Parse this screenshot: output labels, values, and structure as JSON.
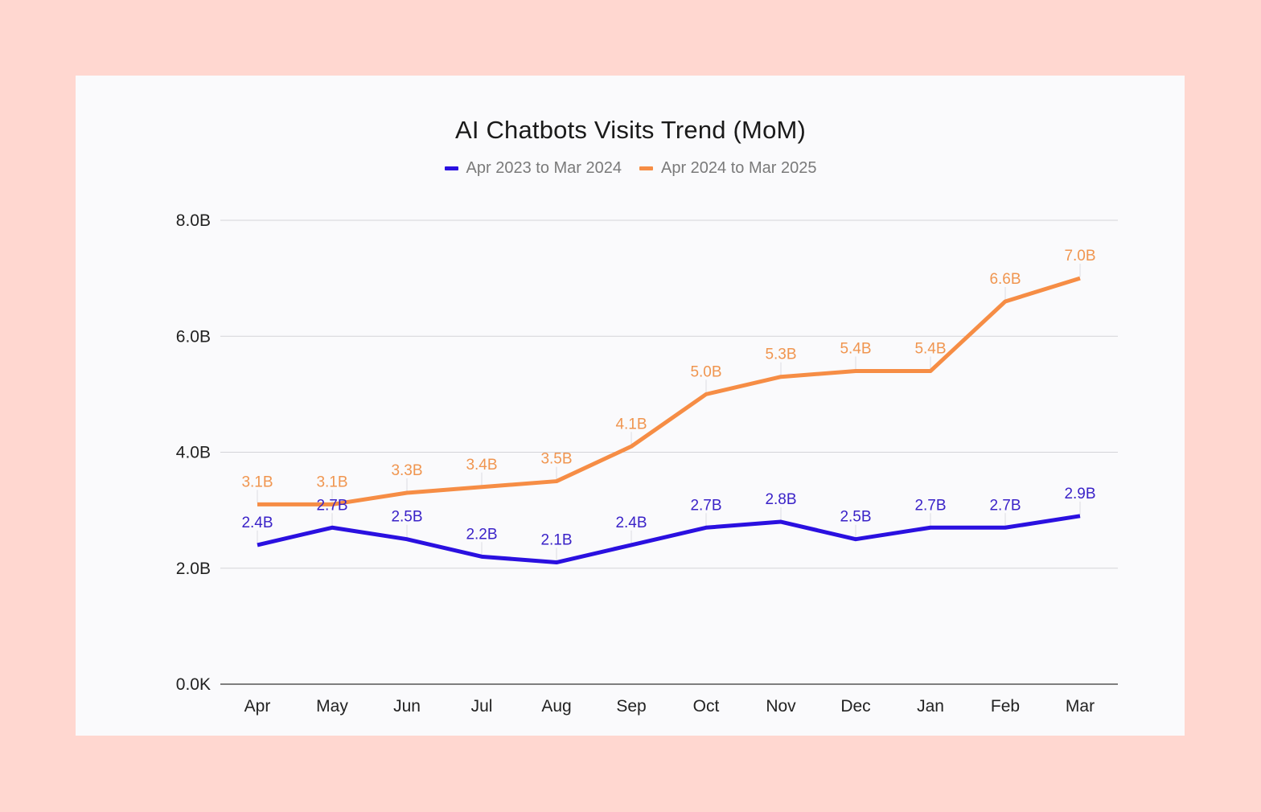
{
  "chart_data": {
    "type": "line",
    "title": "AI Chatbots Visits Trend (MoM)",
    "xlabel": "",
    "ylabel": "",
    "categories": [
      "Apr",
      "May",
      "Jun",
      "Jul",
      "Aug",
      "Sep",
      "Oct",
      "Nov",
      "Dec",
      "Jan",
      "Feb",
      "Mar"
    ],
    "ylim": [
      0,
      8
    ],
    "y_unit": "B",
    "y_ticks": [
      {
        "value": 0,
        "label": "0.0K"
      },
      {
        "value": 2,
        "label": "2.0B"
      },
      {
        "value": 4,
        "label": "4.0B"
      },
      {
        "value": 6,
        "label": "6.0B"
      },
      {
        "value": 8,
        "label": "8.0B"
      }
    ],
    "grid": true,
    "legend_position": "top-center",
    "series": [
      {
        "name": "Apr 2023 to Mar 2024",
        "color": "#2a10e0",
        "label_color": "#3a22c8",
        "values": [
          2.4,
          2.7,
          2.5,
          2.2,
          2.1,
          2.4,
          2.7,
          2.8,
          2.5,
          2.7,
          2.7,
          2.9
        ],
        "labels": [
          "2.4B",
          "2.7B",
          "2.5B",
          "2.2B",
          "2.1B",
          "2.4B",
          "2.7B",
          "2.8B",
          "2.5B",
          "2.7B",
          "2.7B",
          "2.9B"
        ]
      },
      {
        "name": "Apr 2024 to Mar 2025",
        "color": "#f68d45",
        "label_color": "#f0954f",
        "values": [
          3.1,
          3.1,
          3.3,
          3.4,
          3.5,
          4.1,
          5.0,
          5.3,
          5.4,
          5.4,
          6.6,
          7.0
        ],
        "labels": [
          "3.1B",
          "3.1B",
          "3.3B",
          "3.4B",
          "3.5B",
          "4.1B",
          "5.0B",
          "5.3B",
          "5.4B",
          "5.4B",
          "6.6B",
          "7.0B"
        ]
      }
    ]
  },
  "colors": {
    "page_background": "#ffd7d0",
    "card_background": "#fafafc",
    "gridline": "#d4d4d8",
    "axis_line": "#555555"
  }
}
